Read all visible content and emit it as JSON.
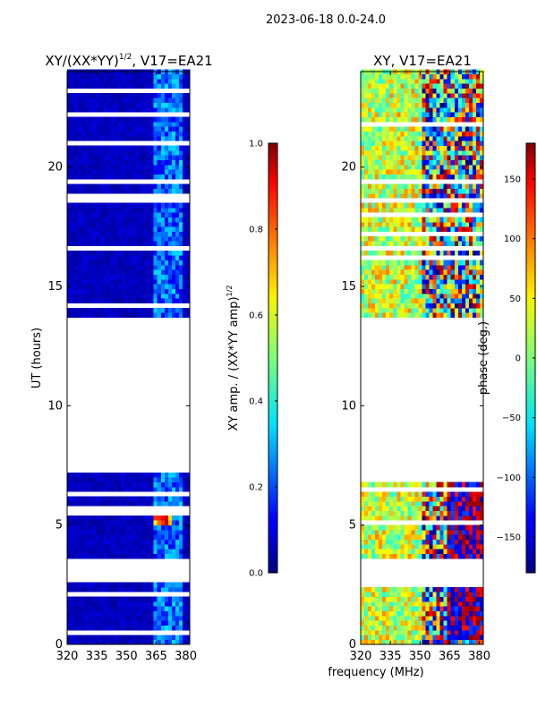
{
  "figure": {
    "suptitle": "2023-06-18 0.0-24.0",
    "xlabel_shared": "frequency (MHz)"
  },
  "chart_data": [
    {
      "type": "heatmap",
      "title_main": "XY/(XX*YY)",
      "title_sup": "1/2",
      "title_tail": ", V17=EA21",
      "xlabel": "",
      "ylabel": "UT (hours)",
      "xlim": [
        320,
        382
      ],
      "ylim": [
        0,
        24
      ],
      "xticks": [
        "320",
        "335",
        "350",
        "365",
        "380"
      ],
      "xtick_values": [
        320,
        335,
        350,
        365,
        380
      ],
      "yticks": [
        "0",
        "5",
        "10",
        "15",
        "20"
      ],
      "ytick_values": [
        0,
        5,
        10,
        15,
        20
      ],
      "colorbar": {
        "label_main": "XY amp. / (XX*YY amp)",
        "label_sup": "1/2",
        "range": [
          0.0,
          1.0
        ],
        "ticks": [
          "0.0",
          "0.2",
          "0.4",
          "0.6",
          "0.8",
          "1.0"
        ],
        "tick_values": [
          0.0,
          0.2,
          0.4,
          0.6,
          0.8,
          1.0
        ],
        "colormap": "jet"
      },
      "data_blocks_ut": [
        [
          0.0,
          2.6
        ],
        [
          3.6,
          7.1
        ],
        [
          13.7,
          24.0
        ]
      ]
    },
    {
      "type": "heatmap",
      "title_main": "XY, V17=EA21",
      "title_sup": "",
      "title_tail": "",
      "xlabel": "frequency (MHz)",
      "ylabel": "",
      "xlim": [
        320,
        382
      ],
      "ylim": [
        0,
        24
      ],
      "xticks": [
        "320",
        "335",
        "350",
        "365",
        "380"
      ],
      "xtick_values": [
        320,
        335,
        350,
        365,
        380
      ],
      "yticks": [
        "0",
        "5",
        "10",
        "15",
        "20"
      ],
      "ytick_values": [
        0,
        5,
        10,
        15,
        20
      ],
      "colorbar": {
        "label_main": "phase (deg.)",
        "label_sup": "",
        "range": [
          -180,
          180
        ],
        "ticks": [
          "−150",
          "−100",
          "−50",
          "0",
          "50",
          "100",
          "150"
        ],
        "tick_values": [
          -150,
          -100,
          -50,
          0,
          50,
          100,
          150
        ],
        "colormap": "jet"
      },
      "data_blocks_ut": [
        [
          0.0,
          2.6
        ],
        [
          3.6,
          7.1
        ],
        [
          13.7,
          24.0
        ]
      ]
    }
  ]
}
